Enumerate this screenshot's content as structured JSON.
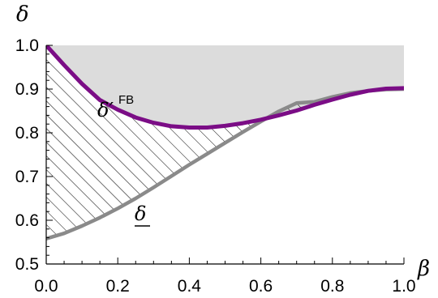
{
  "chart_data": {
    "type": "line",
    "xlabel": "β",
    "ylabel": "δ",
    "xlim": [
      0.0,
      1.0
    ],
    "ylim": [
      0.5,
      1.0
    ],
    "x_ticks": [
      "0.0",
      "0.2",
      "0.4",
      "0.6",
      "0.8",
      "1.0"
    ],
    "y_ticks": [
      "0.5",
      "0.6",
      "0.7",
      "0.8",
      "0.9",
      "1.0"
    ],
    "series": [
      {
        "name": "δ′ FB",
        "color": "#7b0d86",
        "points": [
          [
            0.0,
            1.0
          ],
          [
            0.05,
            0.955
          ],
          [
            0.1,
            0.912
          ],
          [
            0.15,
            0.875
          ],
          [
            0.2,
            0.853
          ],
          [
            0.25,
            0.835
          ],
          [
            0.3,
            0.823
          ],
          [
            0.35,
            0.815
          ],
          [
            0.4,
            0.812
          ],
          [
            0.45,
            0.812
          ],
          [
            0.5,
            0.816
          ],
          [
            0.55,
            0.822
          ],
          [
            0.6,
            0.83
          ],
          [
            0.65,
            0.84
          ],
          [
            0.7,
            0.851
          ],
          [
            0.75,
            0.864
          ],
          [
            0.8,
            0.876
          ],
          [
            0.85,
            0.887
          ],
          [
            0.9,
            0.896
          ],
          [
            0.95,
            0.901
          ],
          [
            1.0,
            0.902
          ]
        ]
      },
      {
        "name": "δ",
        "color": "#8a8a8a",
        "points": [
          [
            0.0,
            0.558
          ],
          [
            0.05,
            0.57
          ],
          [
            0.1,
            0.587
          ],
          [
            0.15,
            0.606
          ],
          [
            0.2,
            0.627
          ],
          [
            0.25,
            0.65
          ],
          [
            0.3,
            0.675
          ],
          [
            0.35,
            0.701
          ],
          [
            0.4,
            0.727
          ],
          [
            0.45,
            0.752
          ],
          [
            0.5,
            0.777
          ],
          [
            0.55,
            0.802
          ],
          [
            0.6,
            0.826
          ],
          [
            0.65,
            0.849
          ],
          [
            0.7,
            0.868
          ],
          [
            0.75,
            0.871
          ],
          [
            0.8,
            0.882
          ],
          [
            0.85,
            0.891
          ],
          [
            0.9,
            0.896
          ],
          [
            0.95,
            0.899
          ],
          [
            1.0,
            0.9
          ]
        ]
      }
    ],
    "regions": [
      {
        "fill": "light-gray",
        "between": "δ′ FB curve and δ = 1"
      },
      {
        "fill": "diagonal-hatch",
        "between": "δ curve and δ′ FB curve"
      }
    ],
    "annotations": [
      {
        "text": "δ′",
        "superscript": "FB",
        "x": 0.14,
        "y": 0.89
      },
      {
        "text": "δ",
        "underline": true,
        "x": 0.19,
        "y": 0.6
      }
    ]
  }
}
